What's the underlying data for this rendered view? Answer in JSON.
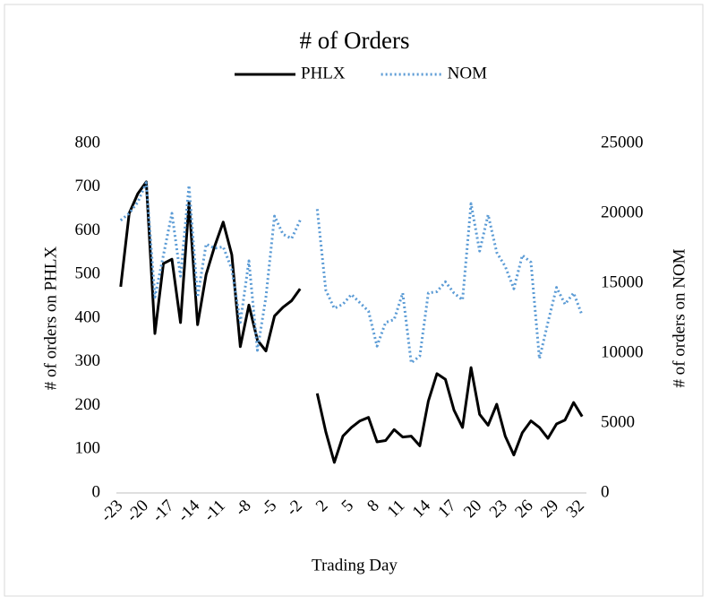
{
  "chart_data": {
    "type": "line",
    "title": "# of Orders",
    "x_label": "Trading Day",
    "y_label": "# of orders on PHLX",
    "y2_label": "# of orders on NOM",
    "categories": [
      "-23",
      null,
      null,
      "-20",
      null,
      null,
      "-17",
      null,
      null,
      "-14",
      null,
      null,
      "-11",
      null,
      null,
      "-8",
      null,
      null,
      "-5",
      null,
      null,
      "-2",
      null,
      null,
      "2",
      null,
      null,
      "5",
      null,
      null,
      "8",
      null,
      null,
      "11",
      null,
      null,
      "14",
      null,
      null,
      "17",
      null,
      null,
      "20",
      null,
      null,
      "23",
      null,
      null,
      "26",
      null,
      null,
      "29",
      null,
      null,
      "32"
    ],
    "series": [
      {
        "name": "PHLX",
        "color": "#000000",
        "axis": "y",
        "values": [
          472,
          640,
          685,
          712,
          365,
          525,
          535,
          390,
          665,
          385,
          500,
          565,
          620,
          545,
          335,
          430,
          350,
          325,
          405,
          425,
          440,
          467,
          null,
          228,
          140,
          70,
          130,
          150,
          165,
          173,
          117,
          120,
          145,
          128,
          130,
          108,
          210,
          273,
          260,
          190,
          150,
          287,
          180,
          155,
          203,
          130,
          87,
          138,
          165,
          150,
          125,
          158,
          167,
          207,
          175
        ]
      },
      {
        "name": "NOM",
        "color": "#5b9bd5",
        "axis": "y2",
        "values": [
          19500,
          20000,
          20800,
          22200,
          14000,
          17000,
          20000,
          15500,
          22000,
          14000,
          17800,
          17500,
          17600,
          16000,
          12200,
          16600,
          10200,
          14000,
          19800,
          18500,
          18200,
          19500,
          null,
          20300,
          14500,
          13200,
          13500,
          14200,
          13600,
          13000,
          10500,
          12200,
          12400,
          14300,
          9300,
          9800,
          14300,
          14400,
          15100,
          14300,
          13800,
          20700,
          17300,
          19900,
          17200,
          16200,
          14600,
          17000,
          16500,
          9600,
          12200,
          14700,
          13500,
          14300,
          12700
        ]
      }
    ],
    "ylim": [
      0,
      800
    ],
    "yticks": [
      0,
      100,
      200,
      300,
      400,
      500,
      600,
      700,
      800
    ],
    "y2lim": [
      0,
      25000
    ],
    "y2ticks": [
      0,
      5000,
      10000,
      15000,
      20000,
      25000
    ],
    "legend": "top",
    "grid": false
  }
}
